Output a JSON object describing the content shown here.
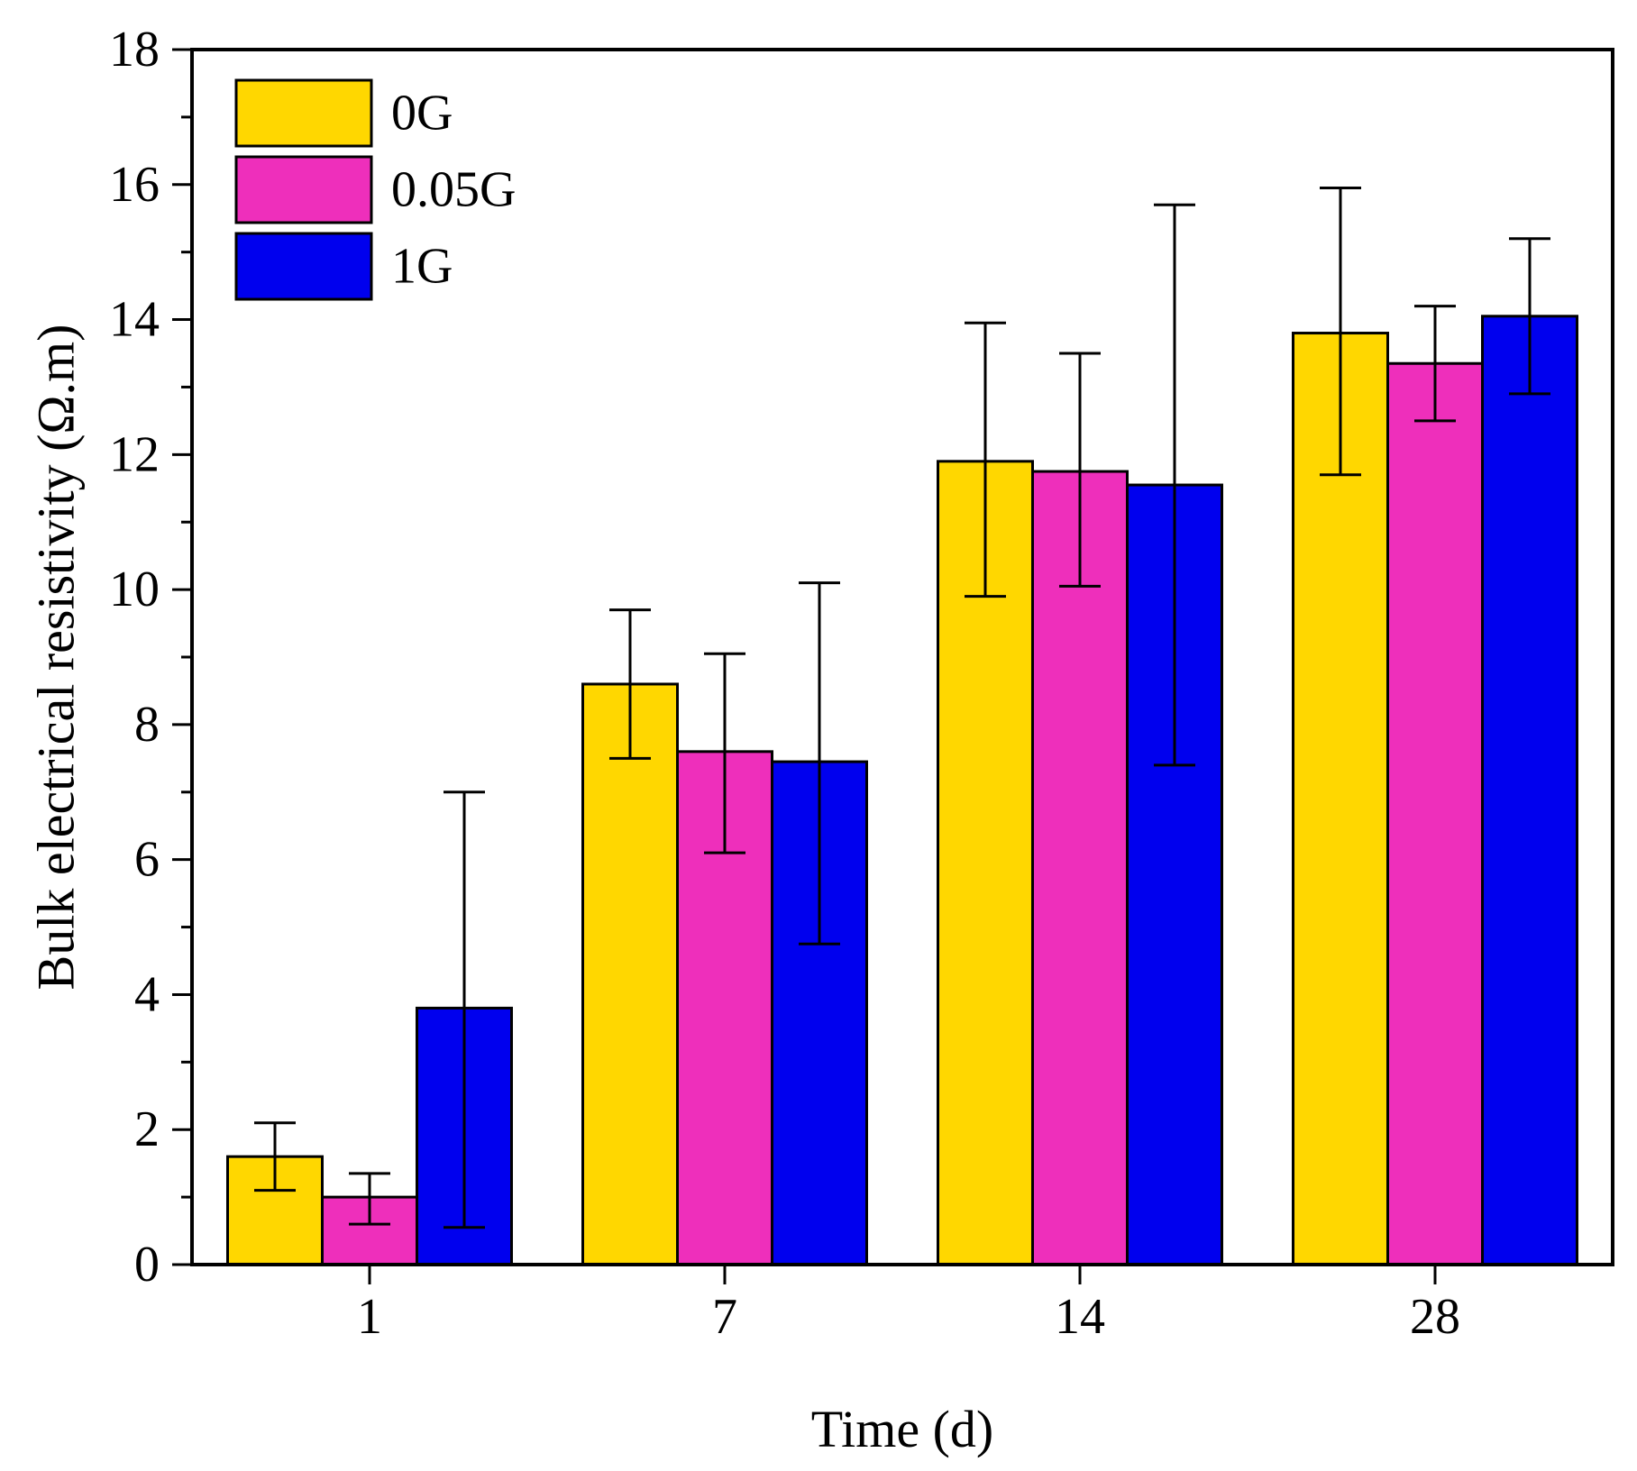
{
  "chart_data": {
    "type": "bar",
    "title": "",
    "xlabel": "Time (d)",
    "ylabel": "Bulk electrical resistivity (Ω.m)",
    "categories": [
      "1",
      "7",
      "14",
      "28"
    ],
    "ylim": [
      0,
      18
    ],
    "yticks": [
      0,
      2,
      4,
      6,
      8,
      10,
      12,
      14,
      16,
      18
    ],
    "yticks_minor_step": 1,
    "grid": false,
    "legend_position": "top-left",
    "series": [
      {
        "name": "0G",
        "color": "#FFD700",
        "values": [
          1.6,
          8.6,
          11.9,
          13.8
        ],
        "error_low": [
          1.1,
          7.5,
          9.9,
          11.7
        ],
        "error_high": [
          2.1,
          9.7,
          13.95,
          15.95
        ]
      },
      {
        "name": "0.05G",
        "color": "#EE2FBB",
        "values": [
          1.0,
          7.6,
          11.75,
          13.35
        ],
        "error_low": [
          0.6,
          6.1,
          10.05,
          12.5
        ],
        "error_high": [
          1.35,
          9.05,
          13.5,
          14.2
        ]
      },
      {
        "name": "1G",
        "color": "#0000EE",
        "values": [
          3.8,
          7.45,
          11.55,
          14.05
        ],
        "error_low": [
          0.55,
          4.75,
          7.4,
          12.9
        ],
        "error_high": [
          7.0,
          10.1,
          15.7,
          15.2
        ]
      }
    ]
  }
}
